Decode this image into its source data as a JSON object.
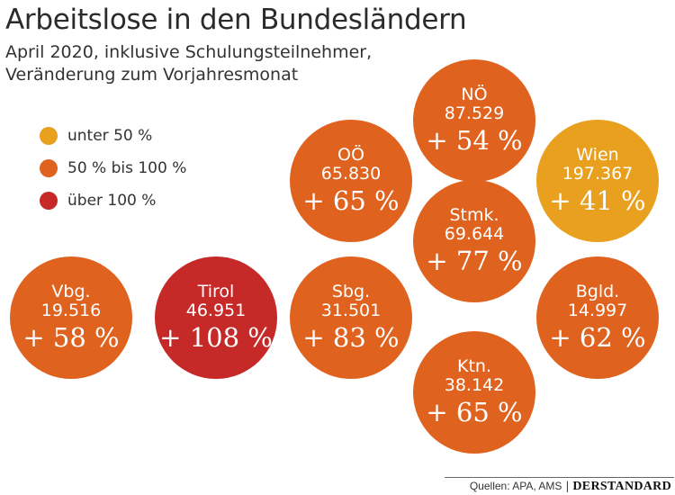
{
  "title": "Arbeitslose in den Bundesländern",
  "subtitle_line1": "April 2020, inklusive Schulungsteilnehmer,",
  "subtitle_line2": "Veränderung zum Vorjahresmonat",
  "legend": [
    {
      "label": "unter 50 %",
      "color": "#E8A01E"
    },
    {
      "label": "50 % bis 100 %",
      "color": "#E0621F"
    },
    {
      "label": "über 100 %",
      "color": "#C62A28"
    }
  ],
  "footer": {
    "sources": "Quellen: APA, AMS",
    "separator": "|",
    "brand": "DERSTANDARD"
  },
  "chart_data": {
    "type": "bubble",
    "title": "Arbeitslose in den Bundesländern",
    "subtitle": "April 2020, inklusive Schulungsteilnehmer, Veränderung zum Vorjahresmonat",
    "categories": [
      "unter 50 %",
      "50 % bis 100 %",
      "über 100 %"
    ],
    "regions": [
      {
        "name": "NÖ",
        "value": "87.529",
        "change": "+ 54 %",
        "change_pct": 54,
        "category": 1
      },
      {
        "name": "OÖ",
        "value": "65.830",
        "change": "+ 65 %",
        "change_pct": 65,
        "category": 1
      },
      {
        "name": "Wien",
        "value": "197.367",
        "change": "+ 41 %",
        "change_pct": 41,
        "category": 0
      },
      {
        "name": "Stmk.",
        "value": "69.644",
        "change": "+ 77 %",
        "change_pct": 77,
        "category": 1
      },
      {
        "name": "Vbg.",
        "value": "19.516",
        "change": "+ 58 %",
        "change_pct": 58,
        "category": 1
      },
      {
        "name": "Tirol",
        "value": "46.951",
        "change": "+ 108 %",
        "change_pct": 108,
        "category": 2
      },
      {
        "name": "Sbg.",
        "value": "31.501",
        "change": "+ 83 %",
        "change_pct": 83,
        "category": 1
      },
      {
        "name": "Bgld.",
        "value": "14.997",
        "change": "+ 62 %",
        "change_pct": 62,
        "category": 1
      },
      {
        "name": "Ktn.",
        "value": "38.142",
        "change": "+ 65 %",
        "change_pct": 65,
        "category": 1
      }
    ]
  }
}
